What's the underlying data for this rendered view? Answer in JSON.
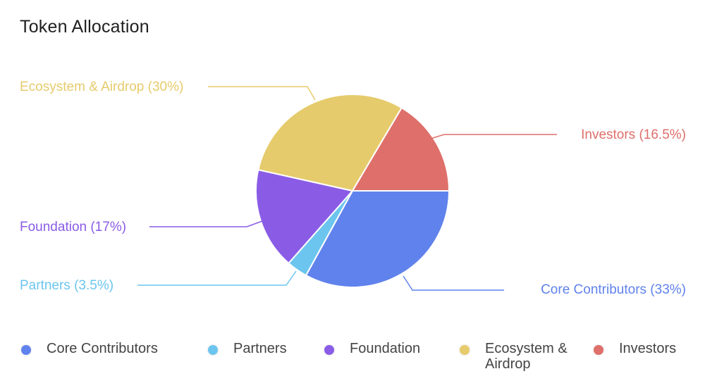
{
  "title": "Token Allocation",
  "chart_data": {
    "type": "pie",
    "title": "Token Allocation",
    "slices": [
      {
        "name": "Core Contributors",
        "value": 33,
        "label": "Core Contributors (33%)",
        "color": "#6082EC"
      },
      {
        "name": "Partners",
        "value": 3.5,
        "label": "Partners (3.5%)",
        "color": "#6CC5EE"
      },
      {
        "name": "Foundation",
        "value": 17,
        "label": "Foundation (17%)",
        "color": "#8A5CE6"
      },
      {
        "name": "Ecosystem & Airdrop",
        "value": 30,
        "label": "Ecosystem & Airdrop (30%)",
        "color": "#E6CB6C"
      },
      {
        "name": "Investors",
        "value": 16.5,
        "label": "Investors (16.5%)",
        "color": "#DE6F6A"
      }
    ],
    "start_angle": "3 o'clock, clockwise",
    "legend_position": "bottom"
  },
  "legend": [
    {
      "label": "Core Contributors",
      "color": "#6082EC"
    },
    {
      "label": "Partners",
      "color": "#6CC5EE"
    },
    {
      "label": "Foundation",
      "color": "#8A5CE6"
    },
    {
      "label": "Ecosystem & Airdrop",
      "color": "#E6CB6C"
    },
    {
      "label": "Investors",
      "color": "#DE6F6A"
    }
  ]
}
